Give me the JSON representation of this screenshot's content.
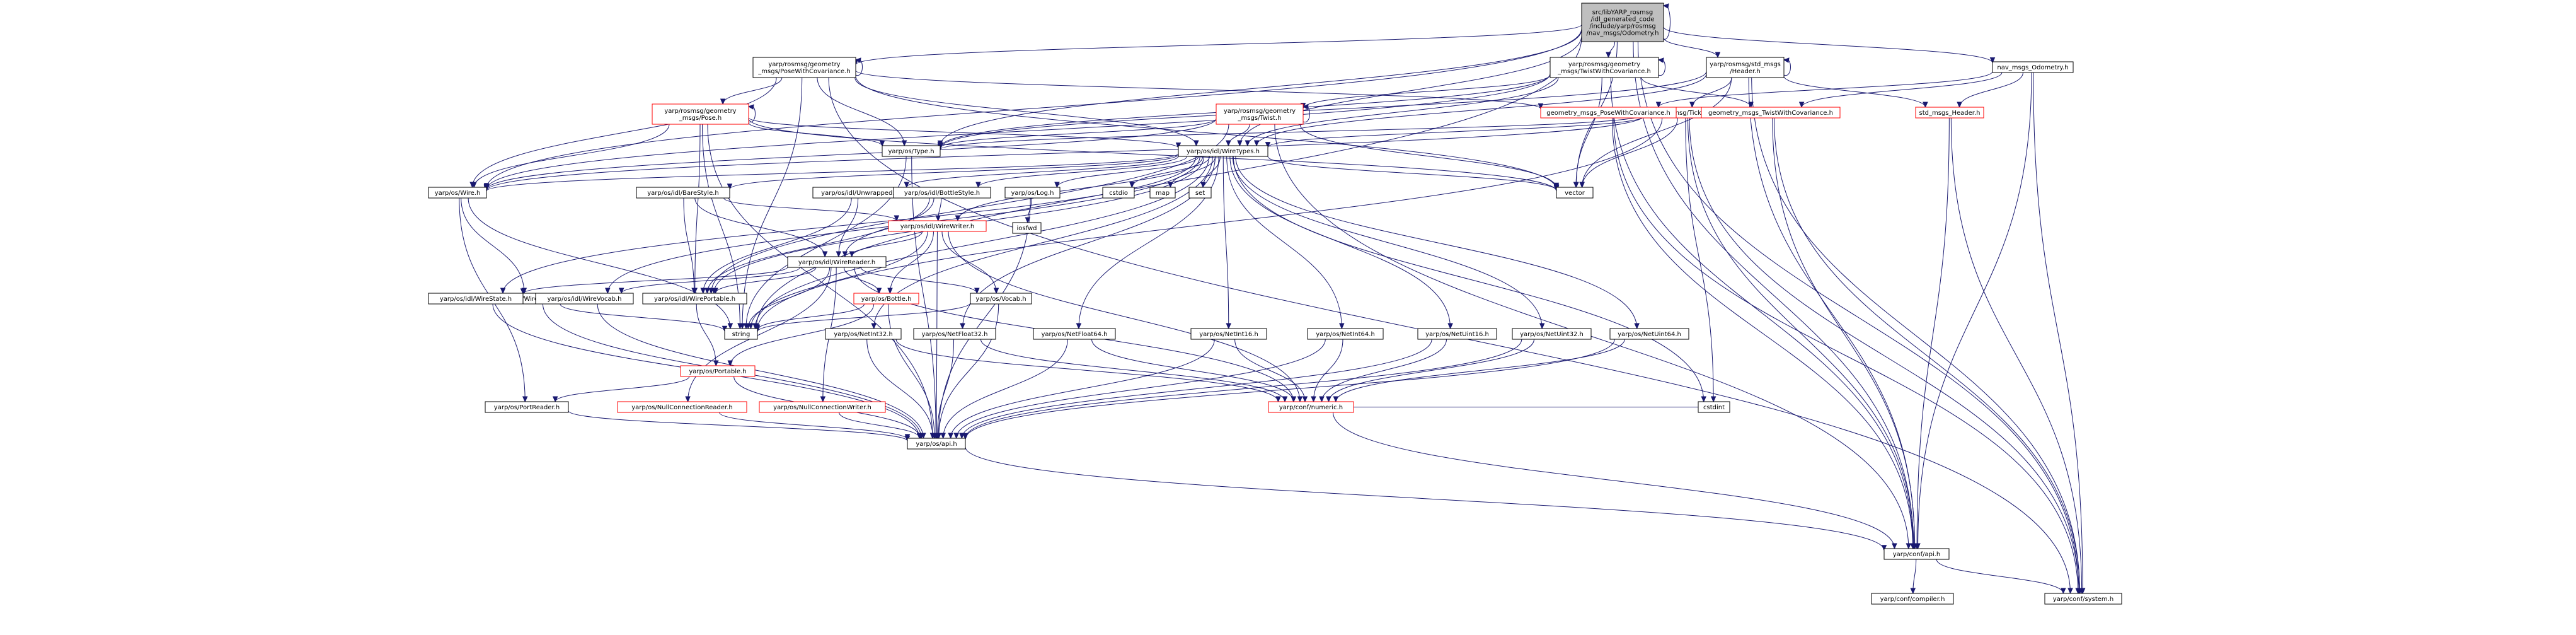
{
  "diagram": {
    "title_lines": [
      "src/libYARP_rosmsg",
      "/idl_generated_code",
      "/include/yarp/rosmsg",
      "/nav_msgs/Odometry.h"
    ],
    "colors": {
      "edge": "#191970",
      "box_border": "#000000",
      "box_border_incomplete": "#ff0000",
      "root_fill": "#bfbfbf"
    },
    "nodes": [
      {
        "id": "root",
        "lines": [
          "src/libYARP_rosmsg",
          "/idl_generated_code",
          "/include/yarp/rosmsg",
          "/nav_msgs/Odometry.h"
        ],
        "style": "root"
      },
      {
        "id": "pose_cov",
        "lines": [
          "yarp/rosmsg/geometry",
          "_msgs/PoseWithCovariance.h"
        ],
        "style": "black"
      },
      {
        "id": "twist_cov",
        "lines": [
          "yarp/rosmsg/geometry",
          "_msgs/TwistWithCovariance.h"
        ],
        "style": "black"
      },
      {
        "id": "header",
        "lines": [
          "yarp/rosmsg/std_msgs",
          "/Header.h"
        ],
        "style": "black"
      },
      {
        "id": "nav_odom",
        "lines": [
          "nav_msgs_Odometry.h"
        ],
        "style": "black"
      },
      {
        "id": "pose",
        "lines": [
          "yarp/rosmsg/geometry",
          "_msgs/Pose.h"
        ],
        "style": "red"
      },
      {
        "id": "twist",
        "lines": [
          "yarp/rosmsg/geometry",
          "_msgs/Twist.h"
        ],
        "style": "red"
      },
      {
        "id": "ticktime",
        "lines": [
          "yarp/rosmsg/TickTime.h"
        ],
        "style": "red"
      },
      {
        "id": "gm_pose_cov",
        "lines": [
          "geometry_msgs_PoseWithCovariance.h"
        ],
        "style": "red"
      },
      {
        "id": "gm_twist_cov",
        "lines": [
          "geometry_msgs_TwistWithCovariance.h"
        ],
        "style": "red"
      },
      {
        "id": "std_header",
        "lines": [
          "std_msgs_Header.h"
        ],
        "style": "red"
      },
      {
        "id": "type",
        "lines": [
          "yarp/os/Type.h"
        ],
        "style": "black"
      },
      {
        "id": "wiretypes",
        "lines": [
          "yarp/os/idl/WireTypes.h"
        ],
        "style": "black"
      },
      {
        "id": "wire",
        "lines": [
          "yarp/os/Wire.h"
        ],
        "style": "black"
      },
      {
        "id": "vector",
        "lines": [
          "vector"
        ],
        "style": "black"
      },
      {
        "id": "barestyle",
        "lines": [
          "yarp/os/idl/BareStyle.h"
        ],
        "style": "black"
      },
      {
        "id": "unwrapped",
        "lines": [
          "yarp/os/idl/Unwrapped.h"
        ],
        "style": "black"
      },
      {
        "id": "bottlestyle",
        "lines": [
          "yarp/os/idl/BottleStyle.h"
        ],
        "style": "black"
      },
      {
        "id": "log",
        "lines": [
          "yarp/os/Log.h"
        ],
        "style": "black"
      },
      {
        "id": "cstdio",
        "lines": [
          "cstdio"
        ],
        "style": "black"
      },
      {
        "id": "map",
        "lines": [
          "map"
        ],
        "style": "black"
      },
      {
        "id": "set",
        "lines": [
          "set"
        ],
        "style": "black"
      },
      {
        "id": "iosfwd",
        "lines": [
          "iosfwd"
        ],
        "style": "black"
      },
      {
        "id": "wirewriter",
        "lines": [
          "yarp/os/idl/WireWriter.h"
        ],
        "style": "red"
      },
      {
        "id": "wirereader",
        "lines": [
          "yarp/os/idl/WireReader.h"
        ],
        "style": "black"
      },
      {
        "id": "wirelink",
        "lines": [
          "yarp/os/WireLink.h"
        ],
        "style": "black"
      },
      {
        "id": "wirestate",
        "lines": [
          "yarp/os/idl/WireState.h"
        ],
        "style": "black"
      },
      {
        "id": "wirevocab",
        "lines": [
          "yarp/os/idl/WireVocab.h"
        ],
        "style": "black"
      },
      {
        "id": "wireportable",
        "lines": [
          "yarp/os/idl/WirePortable.h"
        ],
        "style": "black"
      },
      {
        "id": "bottle",
        "lines": [
          "yarp/os/Bottle.h"
        ],
        "style": "red"
      },
      {
        "id": "vocab",
        "lines": [
          "yarp/os/Vocab.h"
        ],
        "style": "black"
      },
      {
        "id": "string",
        "lines": [
          "string"
        ],
        "style": "black"
      },
      {
        "id": "portable",
        "lines": [
          "yarp/os/Portable.h"
        ],
        "style": "red"
      },
      {
        "id": "netint32",
        "lines": [
          "yarp/os/NetInt32.h"
        ],
        "style": "black"
      },
      {
        "id": "netfloat32",
        "lines": [
          "yarp/os/NetFloat32.h"
        ],
        "style": "black"
      },
      {
        "id": "netfloat64",
        "lines": [
          "yarp/os/NetFloat64.h"
        ],
        "style": "black"
      },
      {
        "id": "netint16",
        "lines": [
          "yarp/os/NetInt16.h"
        ],
        "style": "black"
      },
      {
        "id": "netint64",
        "lines": [
          "yarp/os/NetInt64.h"
        ],
        "style": "black"
      },
      {
        "id": "netuint16",
        "lines": [
          "yarp/os/NetUint16.h"
        ],
        "style": "black"
      },
      {
        "id": "netuint32",
        "lines": [
          "yarp/os/NetUint32.h"
        ],
        "style": "black"
      },
      {
        "id": "netuint64",
        "lines": [
          "yarp/os/NetUint64.h"
        ],
        "style": "black"
      },
      {
        "id": "portreader",
        "lines": [
          "yarp/os/PortReader.h"
        ],
        "style": "black"
      },
      {
        "id": "nullconnreader",
        "lines": [
          "yarp/os/NullConnectionReader.h"
        ],
        "style": "red"
      },
      {
        "id": "nullconnwriter",
        "lines": [
          "yarp/os/NullConnectionWriter.h"
        ],
        "style": "red"
      },
      {
        "id": "numeric",
        "lines": [
          "yarp/conf/numeric.h"
        ],
        "style": "red"
      },
      {
        "id": "cstdint",
        "lines": [
          "cstdint"
        ],
        "style": "black"
      },
      {
        "id": "os_api",
        "lines": [
          "yarp/os/api.h"
        ],
        "style": "black"
      },
      {
        "id": "conf_api",
        "lines": [
          "yarp/conf/api.h"
        ],
        "style": "black"
      },
      {
        "id": "compiler",
        "lines": [
          "yarp/conf/compiler.h"
        ],
        "style": "black"
      },
      {
        "id": "system",
        "lines": [
          "yarp/conf/system.h"
        ],
        "style": "black"
      }
    ],
    "edges": [
      [
        "root",
        "pose_cov"
      ],
      [
        "root",
        "twist_cov"
      ],
      [
        "root",
        "header"
      ],
      [
        "root",
        "nav_odom"
      ],
      [
        "root",
        "type"
      ],
      [
        "root",
        "wiretypes"
      ],
      [
        "root",
        "wire"
      ],
      [
        "root",
        "vector"
      ],
      [
        "root",
        "string"
      ],
      [
        "root",
        "conf_api"
      ],
      [
        "root",
        "system"
      ],
      [
        "pose_cov",
        "pose"
      ],
      [
        "pose_cov",
        "type"
      ],
      [
        "pose_cov",
        "wiretypes"
      ],
      [
        "pose_cov",
        "wire"
      ],
      [
        "pose_cov",
        "vector"
      ],
      [
        "pose_cov",
        "gm_pose_cov"
      ],
      [
        "pose_cov",
        "string"
      ],
      [
        "pose_cov",
        "system"
      ],
      [
        "twist_cov",
        "twist"
      ],
      [
        "twist_cov",
        "type"
      ],
      [
        "twist_cov",
        "wiretypes"
      ],
      [
        "twist_cov",
        "wire"
      ],
      [
        "twist_cov",
        "vector"
      ],
      [
        "twist_cov",
        "gm_twist_cov"
      ],
      [
        "twist_cov",
        "conf_api"
      ],
      [
        "header",
        "ticktime"
      ],
      [
        "header",
        "type"
      ],
      [
        "header",
        "wiretypes"
      ],
      [
        "header",
        "std_header"
      ],
      [
        "header",
        "vector"
      ],
      [
        "header",
        "conf_api"
      ],
      [
        "header",
        "system"
      ],
      [
        "nav_odom",
        "gm_pose_cov"
      ],
      [
        "nav_odom",
        "gm_twist_cov"
      ],
      [
        "nav_odom",
        "std_header"
      ],
      [
        "nav_odom",
        "conf_api"
      ],
      [
        "nav_odom",
        "system"
      ],
      [
        "pose",
        "type"
      ],
      [
        "pose",
        "wiretypes"
      ],
      [
        "pose",
        "wire"
      ],
      [
        "pose",
        "vector"
      ],
      [
        "pose",
        "wireportable"
      ],
      [
        "pose",
        "string"
      ],
      [
        "pose",
        "os_api"
      ],
      [
        "twist",
        "type"
      ],
      [
        "twist",
        "wiretypes"
      ],
      [
        "twist",
        "wire"
      ],
      [
        "twist",
        "vector"
      ],
      [
        "twist",
        "wireportable"
      ],
      [
        "twist",
        "conf_api"
      ],
      [
        "ticktime",
        "type"
      ],
      [
        "ticktime",
        "wiretypes"
      ],
      [
        "ticktime",
        "wire"
      ],
      [
        "ticktime",
        "vector"
      ],
      [
        "ticktime",
        "string"
      ],
      [
        "ticktime",
        "cstdint"
      ],
      [
        "ticktime",
        "conf_api"
      ],
      [
        "ticktime",
        "system"
      ],
      [
        "gm_pose_cov",
        "conf_api"
      ],
      [
        "gm_pose_cov",
        "system"
      ],
      [
        "gm_twist_cov",
        "conf_api"
      ],
      [
        "gm_twist_cov",
        "system"
      ],
      [
        "std_header",
        "conf_api"
      ],
      [
        "std_header",
        "system"
      ],
      [
        "type",
        "os_api"
      ],
      [
        "type",
        "string"
      ],
      [
        "wiretypes",
        "barestyle"
      ],
      [
        "wiretypes",
        "unwrapped"
      ],
      [
        "wiretypes",
        "bottlestyle"
      ],
      [
        "wiretypes",
        "log"
      ],
      [
        "wiretypes",
        "cstdio"
      ],
      [
        "wiretypes",
        "map"
      ],
      [
        "wiretypes",
        "set"
      ],
      [
        "wiretypes",
        "vector"
      ],
      [
        "wiretypes",
        "wirewriter"
      ],
      [
        "wiretypes",
        "wire"
      ],
      [
        "wiretypes",
        "wirestate"
      ],
      [
        "wiretypes",
        "wirevocab"
      ],
      [
        "wiretypes",
        "wireportable"
      ],
      [
        "wiretypes",
        "string"
      ],
      [
        "wiretypes",
        "netint32"
      ],
      [
        "wiretypes",
        "netfloat32"
      ],
      [
        "wiretypes",
        "netfloat64"
      ],
      [
        "wiretypes",
        "netint16"
      ],
      [
        "wiretypes",
        "netint64"
      ],
      [
        "wiretypes",
        "netuint16"
      ],
      [
        "wiretypes",
        "netuint32"
      ],
      [
        "wiretypes",
        "netuint64"
      ],
      [
        "wiretypes",
        "cstdint"
      ],
      [
        "wire",
        "wirelink"
      ],
      [
        "wire",
        "portreader"
      ],
      [
        "wire",
        "string"
      ],
      [
        "barestyle",
        "wirereader"
      ],
      [
        "barestyle",
        "wirewriter"
      ],
      [
        "barestyle",
        "wireportable"
      ],
      [
        "unwrapped",
        "wirereader"
      ],
      [
        "unwrapped",
        "wireportable"
      ],
      [
        "bottlestyle",
        "wirereader"
      ],
      [
        "bottlestyle",
        "wirewriter"
      ],
      [
        "bottlestyle",
        "wireportable"
      ],
      [
        "log",
        "iosfwd"
      ],
      [
        "log",
        "os_api"
      ],
      [
        "wirewriter",
        "wirereader"
      ],
      [
        "wirewriter",
        "bottle"
      ],
      [
        "wirewriter",
        "vocab"
      ],
      [
        "wirewriter",
        "string"
      ],
      [
        "wirewriter",
        "numeric"
      ],
      [
        "wirewriter",
        "os_api"
      ],
      [
        "wirereader",
        "wirestate"
      ],
      [
        "wirereader",
        "wirevocab"
      ],
      [
        "wirereader",
        "wireportable"
      ],
      [
        "wirereader",
        "bottle"
      ],
      [
        "wirereader",
        "vocab"
      ],
      [
        "wirereader",
        "string"
      ],
      [
        "wirereader",
        "nullconnreader"
      ],
      [
        "wirereader",
        "nullconnwriter"
      ],
      [
        "wirereader",
        "numeric"
      ],
      [
        "wirelink",
        "string"
      ],
      [
        "wirelink",
        "os_api"
      ],
      [
        "wirestate",
        "os_api"
      ],
      [
        "wirevocab",
        "os_api"
      ],
      [
        "wireportable",
        "portable"
      ],
      [
        "bottle",
        "portable"
      ],
      [
        "bottle",
        "string"
      ],
      [
        "bottle",
        "os_api"
      ],
      [
        "vocab",
        "string"
      ],
      [
        "vocab",
        "os_api"
      ],
      [
        "portable",
        "portreader"
      ],
      [
        "portable",
        "os_api"
      ],
      [
        "portreader",
        "os_api"
      ],
      [
        "netint32",
        "numeric"
      ],
      [
        "netint32",
        "os_api"
      ],
      [
        "netfloat32",
        "numeric"
      ],
      [
        "netfloat32",
        "os_api"
      ],
      [
        "netfloat64",
        "numeric"
      ],
      [
        "netfloat64",
        "os_api"
      ],
      [
        "netint16",
        "numeric"
      ],
      [
        "netint16",
        "os_api"
      ],
      [
        "netint64",
        "numeric"
      ],
      [
        "netint64",
        "os_api"
      ],
      [
        "netuint16",
        "numeric"
      ],
      [
        "netuint16",
        "os_api"
      ],
      [
        "netuint32",
        "numeric"
      ],
      [
        "netuint32",
        "os_api"
      ],
      [
        "netuint64",
        "numeric"
      ],
      [
        "netuint64",
        "os_api"
      ],
      [
        "nullconnreader",
        "os_api"
      ],
      [
        "nullconnwriter",
        "os_api"
      ],
      [
        "numeric",
        "cstdint"
      ],
      [
        "numeric",
        "conf_api"
      ],
      [
        "os_api",
        "conf_api"
      ],
      [
        "conf_api",
        "compiler"
      ],
      [
        "conf_api",
        "system"
      ]
    ],
    "self_loops": [
      "root",
      "pose_cov",
      "twist_cov",
      "header",
      "pose",
      "twist",
      "ticktime"
    ]
  }
}
